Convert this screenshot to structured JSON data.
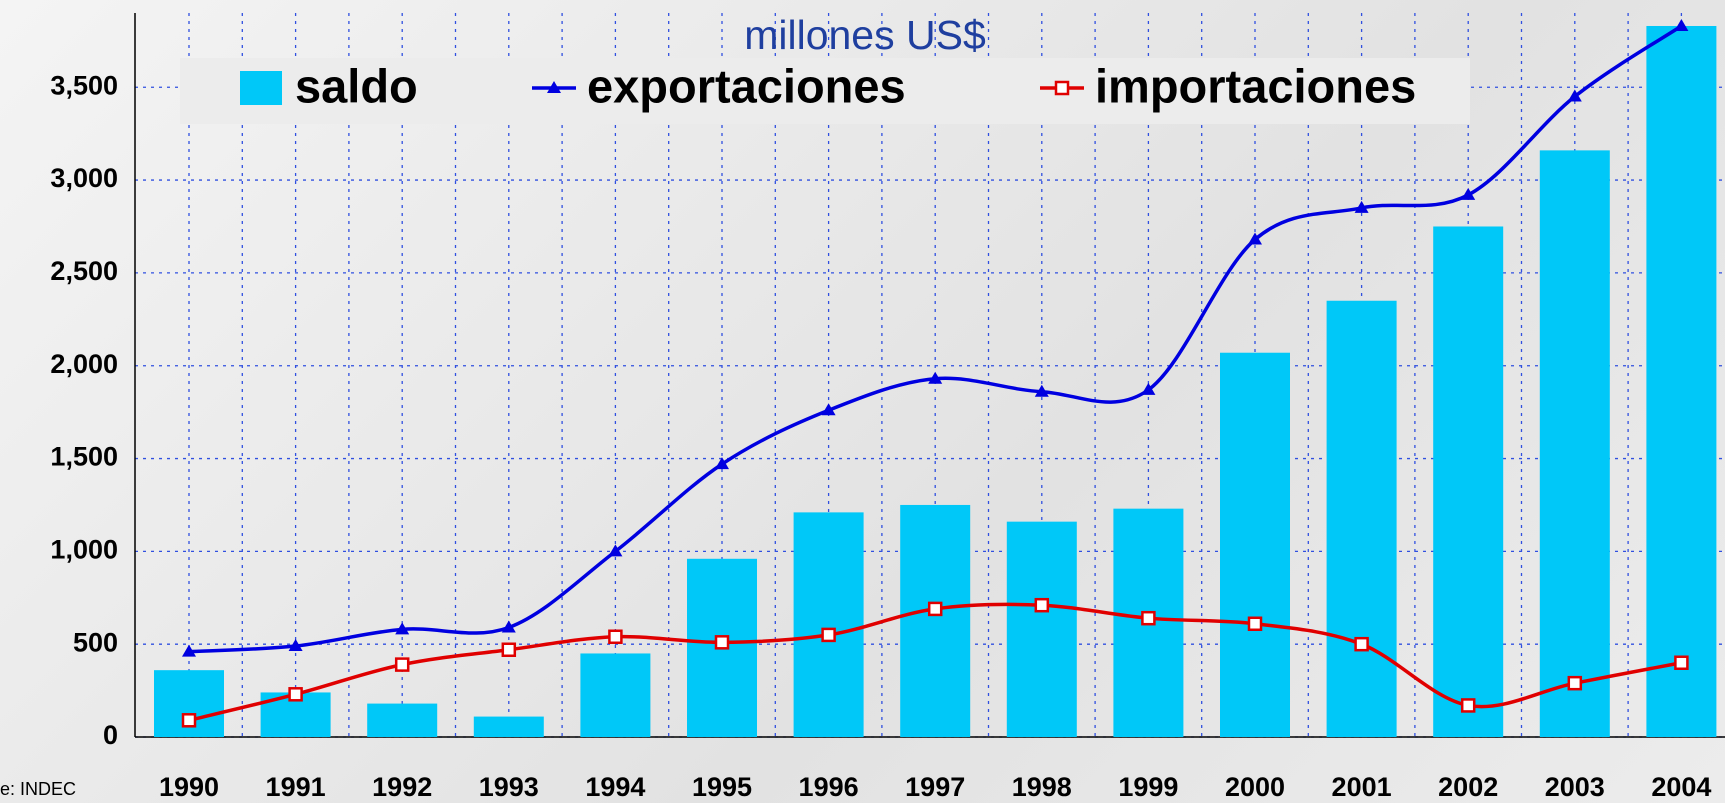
{
  "chart_data": {
    "type": "bar",
    "subtitle": "millones US$",
    "source": "e: INDEC",
    "categories": [
      "1990",
      "1991",
      "1992",
      "1993",
      "1994",
      "1995",
      "1996",
      "1997",
      "1998",
      "1999",
      "2000",
      "2001",
      "2002",
      "2003",
      "2004"
    ],
    "series": [
      {
        "name": "saldo",
        "type": "bar",
        "color": "#00c8f8",
        "values": [
          360,
          240,
          180,
          110,
          450,
          960,
          1210,
          1250,
          1160,
          1230,
          2070,
          2350,
          2750,
          3160,
          3830
        ]
      },
      {
        "name": "exportaciones",
        "type": "line",
        "marker": "triangle",
        "color": "#0000e0",
        "values": [
          460,
          490,
          580,
          590,
          1000,
          1470,
          1760,
          1930,
          1860,
          1870,
          2680,
          2850,
          2920,
          3450,
          3830
        ]
      },
      {
        "name": "importaciones",
        "type": "line",
        "marker": "square",
        "color": "#e00000",
        "values": [
          90,
          230,
          390,
          470,
          540,
          510,
          550,
          690,
          710,
          640,
          610,
          500,
          170,
          290,
          400
        ]
      }
    ],
    "ylim": [
      0,
      3900
    ],
    "yticks": [
      0,
      500,
      {
        "value": 1000,
        "label": "1,000"
      },
      {
        "value": 1500,
        "label": "1,500"
      },
      {
        "value": 2000,
        "label": "2,000"
      },
      {
        "value": 2500,
        "label": "2,500"
      },
      {
        "value": 3000,
        "label": "3,000"
      },
      {
        "value": 3500,
        "label": "3,500"
      }
    ],
    "grid": true,
    "legend": "top"
  }
}
